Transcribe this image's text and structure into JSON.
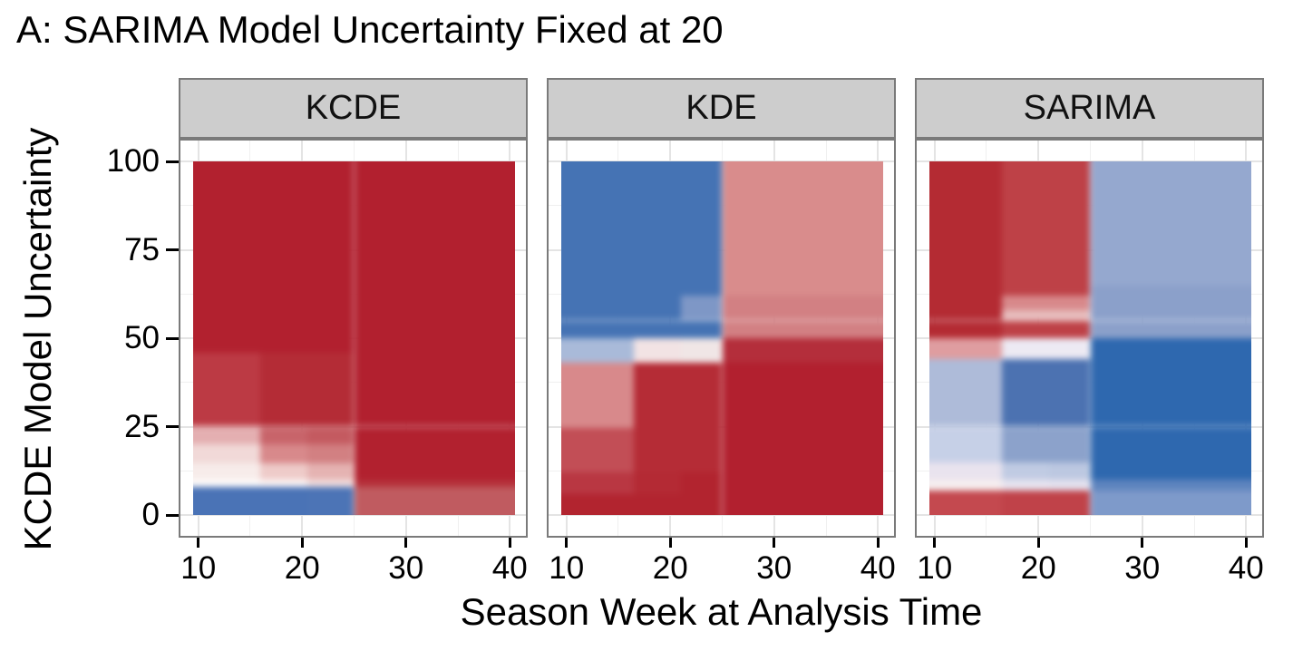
{
  "title": "A: SARIMA Model Uncertainty Fixed at 20",
  "axes": {
    "x_label": "Season Week at Analysis Time",
    "y_label": "KCDE Model Uncertainty"
  },
  "colors": {
    "background": "#FFFFFF",
    "panel_border": "#7A7A7A",
    "strip_background": "#CDCDCD",
    "strip_border": "#7A7A7A",
    "grid_major": "#E4E4E4",
    "grid_minor": "#F0F0F0",
    "tick_mark": "#000000",
    "text": "#000000",
    "heat_red_dark": "#B2202F",
    "heat_red_light": "#D8898B",
    "heat_white_mid": "#F5F0F0",
    "heat_blue_light": "#95A8CF",
    "heat_blue_dark": "#2E68AF"
  },
  "chart_data": {
    "type": "heatmap",
    "title": "A: SARIMA Model Uncertainty Fixed at 20",
    "xlabel": "Season Week at Analysis Time",
    "ylabel": "KCDE Model Uncertainty",
    "x_tick_values": [
      10,
      20,
      30,
      40
    ],
    "y_tick_values": [
      0,
      25,
      50,
      75,
      100
    ],
    "x_domain": [
      9.5,
      40.5
    ],
    "y_domain": [
      0,
      100
    ],
    "grid": {
      "x_major": [
        10,
        20,
        30,
        40
      ],
      "x_minor": [
        15,
        25,
        35
      ],
      "y_major": [
        0,
        25,
        50,
        75,
        100
      ],
      "y_minor": [
        12.5,
        37.5,
        62.5,
        87.5
      ]
    },
    "legend": "none (color encodes model comparison value: red high / blue low)",
    "panels": [
      {
        "label": "KCDE",
        "col_edges": [
          9.5,
          16,
          20.5,
          25,
          40.5
        ],
        "row_edges": [
          0,
          8,
          10,
          14.5,
          20,
          25,
          46,
          100
        ],
        "cell_colors": [
          [
            "#4A73B6",
            "#4A73B6",
            "#4C74B6",
            "#C05B60"
          ],
          [
            "#FEFCFB",
            "#FDF6F5",
            "#F3DEDD",
            "#B5303A"
          ],
          [
            "#F7ECEA",
            "#EECBC9",
            "#E5B3B2",
            "#B2212F"
          ],
          [
            "#F1D9D8",
            "#D8898B",
            "#D28082",
            "#B2212F"
          ],
          [
            "#E4AFB1",
            "#C8646A",
            "#C45A60",
            "#B2212F"
          ],
          [
            "#BC3A44",
            "#B42C36",
            "#B42C36",
            "#B2202F"
          ],
          [
            "#B2212F",
            "#B2202F",
            "#B2202F",
            "#B2202F"
          ]
        ]
      },
      {
        "label": "KDE",
        "col_edges": [
          9.5,
          16.5,
          21,
          25,
          40.5
        ],
        "row_edges": [
          0,
          6,
          12,
          24.5,
          43,
          50,
          55,
          62,
          100
        ],
        "cell_colors": [
          [
            "#B2242F",
            "#B2242F",
            "#B2242F",
            "#B2202F"
          ],
          [
            "#B93742",
            "#B42A34",
            "#B2242F",
            "#B2202F"
          ],
          [
            "#C24E56",
            "#B52C36",
            "#B52C36",
            "#B2202F"
          ],
          [
            "#D8898B",
            "#B52C36",
            "#B52C36",
            "#B2202F"
          ],
          [
            "#A9BAD9",
            "#F2E3E4",
            "#F0E6E6",
            "#B42E3B"
          ],
          [
            "#4573B4",
            "#4573B4",
            "#4573B4",
            "#D28083"
          ],
          [
            "#4573B4",
            "#4573B4",
            "#7E97C6",
            "#D28083"
          ],
          [
            "#4573B4",
            "#4573B4",
            "#4573B4",
            "#D98C8C"
          ]
        ]
      },
      {
        "label": "SARIMA",
        "col_edges": [
          9.5,
          16.5,
          21,
          25,
          40.5
        ],
        "row_edges": [
          0,
          7,
          10,
          15,
          25,
          44,
          50,
          55,
          58,
          62,
          65,
          100
        ],
        "cell_colors": [
          [
            "#C4494F",
            "#C04249",
            "#C04249",
            "#7E9ACA"
          ],
          [
            "#F6EEEF",
            "#E6E3EF",
            "#E3E1EE",
            "#5E84BE"
          ],
          [
            "#E9E3EE",
            "#C0CBE3",
            "#BCC8E1",
            "#2E68AF"
          ],
          [
            "#C6D0E7",
            "#8CA2CB",
            "#8CA2CB",
            "#2E68AF"
          ],
          [
            "#AEBBD9",
            "#4C72B1",
            "#4C72B1",
            "#2E68AF"
          ],
          [
            "#DF9DA0",
            "#EDEAF3",
            "#EDEAF3",
            "#2E68AF"
          ],
          [
            "#B42B33",
            "#BE4147",
            "#BE4147",
            "#8BA0CA"
          ],
          [
            "#B42B33",
            "#E7BCBC",
            "#E7BCBC",
            "#8BA0CA"
          ],
          [
            "#B42B33",
            "#D8898B",
            "#D8898B",
            "#8BA0CA"
          ],
          [
            "#B42B33",
            "#BE4147",
            "#BE4147",
            "#8BA0CA"
          ],
          [
            "#B42B33",
            "#BE4147",
            "#BE4147",
            "#95A8CF"
          ]
        ]
      }
    ]
  }
}
